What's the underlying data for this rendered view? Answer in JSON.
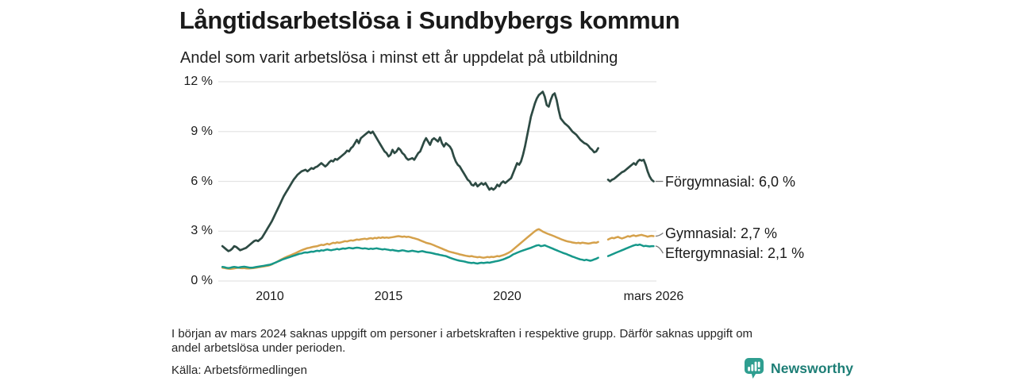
{
  "header": {
    "title": "Långtidsarbetslösa i Sundbybergs kommun",
    "subtitle": "Andel som varit arbetslösa i minst ett år uppdelat på utbildning"
  },
  "chart_data": {
    "type": "line",
    "title": "Långtidsarbetslösa i Sundbybergs kommun",
    "subtitle": "Andel som varit arbetslösa i minst ett år uppdelat på utbildning",
    "x_axis": {
      "start_year": 2008.0,
      "step_months": 1,
      "range": [
        2007.9,
        2026.4
      ],
      "ticks": [
        {
          "label": "2010",
          "t": 2010
        },
        {
          "label": "2015",
          "t": 2015
        },
        {
          "label": "2020",
          "t": 2020
        },
        {
          "label": "mars 2026",
          "t": 2026.17
        }
      ]
    },
    "y_axis": {
      "unit": "%",
      "range": [
        0,
        12
      ],
      "ticks": [
        {
          "label": "0 %",
          "v": 0
        },
        {
          "label": "3 %",
          "v": 3
        },
        {
          "label": "6 %",
          "v": 6
        },
        {
          "label": "9 %",
          "v": 9
        },
        {
          "label": "12 %",
          "v": 12
        }
      ]
    },
    "grid": true,
    "legend_position": "end-of-line-labels",
    "data_gap": {
      "from": "2023-12",
      "to": "2024-03"
    },
    "series": [
      {
        "name": "Förgymnasial",
        "end_label": "Förgymnasial: 6,0 %",
        "last_value": 6.0,
        "color": "#2d4a43",
        "stroke_width": 2.7,
        "label_dy": 0,
        "values": [
          2.1,
          2.0,
          1.9,
          1.8,
          1.85,
          1.95,
          2.1,
          2.05,
          1.95,
          1.85,
          1.9,
          1.95,
          2.0,
          2.1,
          2.2,
          2.3,
          2.4,
          2.45,
          2.4,
          2.5,
          2.6,
          2.8,
          3.0,
          3.2,
          3.4,
          3.6,
          3.85,
          4.1,
          4.35,
          4.6,
          4.85,
          5.1,
          5.3,
          5.5,
          5.7,
          5.9,
          6.1,
          6.25,
          6.4,
          6.5,
          6.6,
          6.65,
          6.7,
          6.6,
          6.7,
          6.8,
          6.75,
          6.85,
          6.9,
          7.0,
          7.1,
          7.0,
          6.9,
          7.0,
          7.15,
          7.25,
          7.2,
          7.35,
          7.3,
          7.4,
          7.5,
          7.6,
          7.7,
          7.85,
          7.8,
          8.0,
          8.1,
          8.3,
          8.5,
          8.3,
          8.6,
          8.7,
          8.8,
          8.9,
          9.0,
          8.9,
          9.0,
          8.8,
          8.6,
          8.4,
          8.2,
          8.0,
          7.8,
          7.7,
          7.5,
          7.6,
          7.9,
          7.7,
          7.8,
          8.0,
          7.9,
          7.7,
          7.6,
          7.4,
          7.3,
          7.35,
          7.4,
          7.3,
          7.5,
          7.7,
          7.8,
          8.1,
          8.4,
          8.6,
          8.4,
          8.2,
          8.5,
          8.6,
          8.5,
          8.4,
          8.65,
          8.3,
          8.1,
          8.3,
          8.2,
          8.1,
          7.9,
          7.5,
          7.2,
          7.0,
          6.9,
          6.7,
          6.5,
          6.3,
          6.1,
          6.0,
          5.8,
          5.75,
          5.9,
          5.7,
          5.8,
          5.9,
          5.8,
          5.9,
          5.7,
          5.5,
          5.6,
          5.5,
          5.6,
          5.8,
          5.7,
          5.9,
          6.0,
          5.9,
          6.0,
          6.1,
          6.2,
          6.5,
          6.8,
          7.1,
          7.0,
          7.2,
          7.6,
          8.1,
          8.7,
          9.3,
          9.9,
          10.3,
          10.7,
          11.0,
          11.2,
          11.3,
          11.4,
          11.1,
          10.6,
          10.5,
          10.9,
          11.2,
          11.3,
          10.9,
          10.3,
          9.8,
          9.65,
          9.5,
          9.4,
          9.3,
          9.15,
          9.0,
          8.9,
          8.8,
          8.65,
          8.5,
          8.4,
          8.3,
          8.25,
          8.15,
          8.0,
          7.9,
          7.75,
          7.8,
          8.0,
          null,
          null,
          null,
          null,
          6.1,
          6.0,
          6.1,
          6.15,
          6.25,
          6.35,
          6.45,
          6.55,
          6.6,
          6.7,
          6.8,
          6.9,
          7.0,
          7.1,
          7.0,
          7.2,
          7.3,
          7.25,
          7.3,
          7.0,
          6.6,
          6.3,
          6.1,
          6.0
        ]
      },
      {
        "name": "Gymnasial",
        "end_label": "Gymnasial: 2,7 %",
        "last_value": 2.7,
        "color": "#d5a14b",
        "stroke_width": 2.5,
        "label_dy": -4,
        "values": [
          0.8,
          0.78,
          0.76,
          0.74,
          0.73,
          0.74,
          0.76,
          0.78,
          0.8,
          0.78,
          0.77,
          0.78,
          0.76,
          0.75,
          0.76,
          0.77,
          0.78,
          0.8,
          0.82,
          0.84,
          0.86,
          0.88,
          0.9,
          0.92,
          0.95,
          1.0,
          1.06,
          1.12,
          1.18,
          1.25,
          1.31,
          1.37,
          1.43,
          1.48,
          1.53,
          1.58,
          1.63,
          1.68,
          1.74,
          1.8,
          1.85,
          1.9,
          1.94,
          1.98,
          2.0,
          2.03,
          2.06,
          2.08,
          2.1,
          2.14,
          2.18,
          2.16,
          2.2,
          2.24,
          2.2,
          2.25,
          2.3,
          2.28,
          2.33,
          2.3,
          2.33,
          2.36,
          2.4,
          2.38,
          2.42,
          2.45,
          2.43,
          2.46,
          2.5,
          2.48,
          2.51,
          2.53,
          2.55,
          2.52,
          2.56,
          2.58,
          2.55,
          2.6,
          2.57,
          2.62,
          2.59,
          2.63,
          2.6,
          2.62,
          2.6,
          2.62,
          2.64,
          2.66,
          2.68,
          2.7,
          2.68,
          2.66,
          2.68,
          2.65,
          2.67,
          2.64,
          2.6,
          2.57,
          2.54,
          2.5,
          2.45,
          2.4,
          2.35,
          2.3,
          2.27,
          2.24,
          2.2,
          2.15,
          2.1,
          2.05,
          2.0,
          1.95,
          1.9,
          1.85,
          1.8,
          1.76,
          1.73,
          1.7,
          1.67,
          1.64,
          1.6,
          1.58,
          1.55,
          1.52,
          1.5,
          1.48,
          1.5,
          1.47,
          1.45,
          1.43,
          1.45,
          1.42,
          1.4,
          1.42,
          1.45,
          1.43,
          1.46,
          1.44,
          1.47,
          1.5,
          1.48,
          1.52,
          1.56,
          1.6,
          1.66,
          1.72,
          1.8,
          1.9,
          2.0,
          2.1,
          2.2,
          2.3,
          2.4,
          2.5,
          2.6,
          2.7,
          2.8,
          2.9,
          3.0,
          3.08,
          3.12,
          3.05,
          2.98,
          2.92,
          2.87,
          2.82,
          2.78,
          2.73,
          2.68,
          2.63,
          2.58,
          2.53,
          2.48,
          2.44,
          2.4,
          2.37,
          2.35,
          2.32,
          2.3,
          2.28,
          2.3,
          2.27,
          2.31,
          2.29,
          2.27,
          2.25,
          2.27,
          2.3,
          2.32,
          2.3,
          2.35,
          null,
          null,
          null,
          null,
          2.5,
          2.56,
          2.6,
          2.57,
          2.62,
          2.66,
          2.6,
          2.56,
          2.6,
          2.65,
          2.7,
          2.67,
          2.72,
          2.75,
          2.7,
          2.73,
          2.76,
          2.78,
          2.74,
          2.71,
          2.67,
          2.7,
          2.72,
          2.7
        ]
      },
      {
        "name": "Eftergymnasial",
        "end_label": "Eftergymnasial: 2,1 %",
        "last_value": 2.1,
        "color": "#16988a",
        "stroke_width": 2.5,
        "label_dy": 9,
        "values": [
          0.85,
          0.83,
          0.8,
          0.78,
          0.8,
          0.83,
          0.85,
          0.83,
          0.81,
          0.83,
          0.85,
          0.86,
          0.84,
          0.82,
          0.8,
          0.8,
          0.82,
          0.84,
          0.86,
          0.88,
          0.9,
          0.92,
          0.94,
          0.96,
          0.98,
          1.02,
          1.07,
          1.12,
          1.17,
          1.22,
          1.27,
          1.32,
          1.36,
          1.4,
          1.44,
          1.48,
          1.52,
          1.56,
          1.6,
          1.64,
          1.66,
          1.7,
          1.72,
          1.71,
          1.74,
          1.77,
          1.76,
          1.8,
          1.82,
          1.8,
          1.85,
          1.83,
          1.87,
          1.9,
          1.87,
          1.85,
          1.88,
          1.9,
          1.93,
          1.9,
          1.93,
          1.96,
          1.94,
          1.97,
          2.0,
          1.98,
          1.96,
          1.99,
          2.01,
          2.0,
          1.97,
          1.95,
          1.97,
          1.95,
          1.92,
          1.95,
          1.93,
          1.95,
          1.97,
          1.94,
          1.92,
          1.9,
          1.92,
          1.9,
          1.88,
          1.85,
          1.87,
          1.84,
          1.82,
          1.8,
          1.82,
          1.85,
          1.83,
          1.8,
          1.78,
          1.8,
          1.82,
          1.8,
          1.78,
          1.75,
          1.78,
          1.8,
          1.77,
          1.74,
          1.72,
          1.7,
          1.68,
          1.65,
          1.62,
          1.6,
          1.57,
          1.55,
          1.52,
          1.5,
          1.45,
          1.4,
          1.36,
          1.32,
          1.28,
          1.25,
          1.22,
          1.2,
          1.18,
          1.15,
          1.12,
          1.1,
          1.08,
          1.1,
          1.07,
          1.05,
          1.08,
          1.1,
          1.08,
          1.1,
          1.12,
          1.1,
          1.13,
          1.15,
          1.18,
          1.2,
          1.23,
          1.26,
          1.3,
          1.35,
          1.4,
          1.45,
          1.52,
          1.6,
          1.65,
          1.7,
          1.75,
          1.8,
          1.84,
          1.88,
          1.92,
          1.96,
          2.0,
          2.05,
          2.1,
          2.14,
          2.16,
          2.1,
          2.12,
          2.15,
          2.1,
          2.05,
          2.0,
          1.95,
          1.9,
          1.85,
          1.8,
          1.75,
          1.7,
          1.66,
          1.62,
          1.57,
          1.52,
          1.47,
          1.43,
          1.38,
          1.34,
          1.3,
          1.28,
          1.25,
          1.28,
          1.25,
          1.22,
          1.25,
          1.3,
          1.34,
          1.4,
          null,
          null,
          null,
          null,
          1.5,
          1.55,
          1.6,
          1.65,
          1.7,
          1.75,
          1.8,
          1.85,
          1.9,
          1.95,
          2.0,
          2.05,
          2.1,
          2.14,
          2.18,
          2.16,
          2.2,
          2.15,
          2.1,
          2.12,
          2.1,
          2.08,
          2.1,
          2.1
        ]
      }
    ]
  },
  "footnote": {
    "lines": [
      "I början av mars 2024 saknas uppgift om personer i arbetskraften i respektive grupp. Därför saknas uppgift om",
      "andel arbetslösa under perioden."
    ]
  },
  "source": {
    "text": "Källa: Arbetsförmedlingen"
  },
  "branding": {
    "name": "Newsworthy",
    "icon": "bar-chart-speech-bubble-icon",
    "icon_color": "#2f9e90",
    "text_color": "#1d7e76"
  },
  "colors": {
    "grid": "#e4e4e4",
    "text": "#1a1a1a",
    "connector": "#7a7a7a"
  }
}
